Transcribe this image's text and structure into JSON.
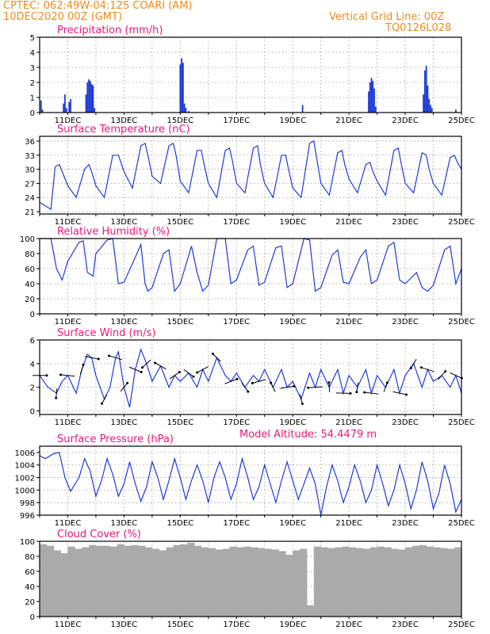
{
  "header": {
    "station": "CPTEC:   062:49W-04:12S   COARI (AM)",
    "date": "10DEC2020 00Z (GMT)",
    "grid_note": "Vertical Grid Line: 00Z",
    "run_id": "TQ0126L028"
  },
  "colors": {
    "header": "#f08a1c",
    "title": "#e8177c",
    "line": "#1f3bd6",
    "bar": "#1f3bd6",
    "cloud": "#aaaaaa",
    "axis": "#000000",
    "grid": "#999999"
  },
  "x_ticks": [
    "11DEC",
    "13DEC",
    "15DEC",
    "17DEC",
    "19DEC",
    "21DEC",
    "23DEC",
    "25DEC"
  ],
  "chart_data": [
    {
      "type": "bar",
      "title": "Precipitation (mm/h)",
      "x_start": "10DEC2020 00Z",
      "x_end": "25DEC2020 00Z",
      "x_unit": "days",
      "ylim": [
        0,
        5
      ],
      "yticks": [
        0,
        1,
        2,
        3,
        4,
        5
      ],
      "grid": true,
      "x": [
        0.05,
        0.1,
        0.85,
        0.9,
        0.95,
        1.05,
        1.1,
        1.65,
        1.7,
        1.75,
        1.8,
        1.85,
        1.9,
        1.95,
        5.0,
        5.05,
        5.1,
        5.15,
        5.2,
        5.3,
        9.35,
        11.7,
        11.75,
        11.8,
        11.85,
        11.9,
        11.95,
        13.65,
        13.7,
        13.75,
        13.8,
        13.85,
        13.9,
        13.95,
        14.8
      ],
      "values": [
        0.8,
        0.2,
        0.6,
        1.2,
        0.3,
        0.7,
        0.9,
        1.2,
        2.0,
        2.2,
        2.1,
        1.9,
        1.8,
        0.3,
        3.2,
        3.6,
        3.3,
        0.6,
        0.3,
        0.1,
        0.5,
        1.4,
        2.0,
        2.3,
        2.1,
        1.6,
        0.4,
        1.2,
        2.8,
        3.1,
        1.8,
        0.9,
        0.5,
        0.3,
        0.2
      ]
    },
    {
      "type": "line",
      "title": "Surface Temperature (nC)",
      "x_start": "10DEC2020 00Z",
      "x_end": "25DEC2020 00Z",
      "x_unit": "days",
      "ylim": [
        20.5,
        37
      ],
      "yticks": [
        21,
        24,
        27,
        30,
        33,
        36
      ],
      "grid": true,
      "x": [
        0,
        0.4,
        0.55,
        0.7,
        0.8,
        1.0,
        1.3,
        1.6,
        1.75,
        1.85,
        2.0,
        2.3,
        2.6,
        2.8,
        3.0,
        3.3,
        3.6,
        3.75,
        3.85,
        4.0,
        4.3,
        4.6,
        4.75,
        4.85,
        5.0,
        5.3,
        5.6,
        5.75,
        5.85,
        6.0,
        6.3,
        6.6,
        6.75,
        6.85,
        7.0,
        7.3,
        7.6,
        7.75,
        7.85,
        8.0,
        8.3,
        8.6,
        8.75,
        8.85,
        9.0,
        9.3,
        9.6,
        9.75,
        9.85,
        10.0,
        10.3,
        10.6,
        10.75,
        10.85,
        11.0,
        11.3,
        11.6,
        11.75,
        11.85,
        12.0,
        12.3,
        12.6,
        12.75,
        12.85,
        13.0,
        13.3,
        13.6,
        13.75,
        13.85,
        14.0,
        14.3,
        14.6,
        14.75,
        14.85,
        15.0
      ],
      "values": [
        23.0,
        21.5,
        30.5,
        31.0,
        29.5,
        26.5,
        24.0,
        30.0,
        31.0,
        29.5,
        26.5,
        24.0,
        33.0,
        33.0,
        29.5,
        26.0,
        35.0,
        35.5,
        33.0,
        28.5,
        27.0,
        35.0,
        35.5,
        33.0,
        27.5,
        25.0,
        34.0,
        34.0,
        31.0,
        27.0,
        24.0,
        34.0,
        34.5,
        32.0,
        27.0,
        25.0,
        34.5,
        35.0,
        31.0,
        27.0,
        24.0,
        33.0,
        33.0,
        30.0,
        26.0,
        24.0,
        35.5,
        36.0,
        32.5,
        27.0,
        24.5,
        33.5,
        34.0,
        31.0,
        28.0,
        25.0,
        31.0,
        31.5,
        29.5,
        27.5,
        24.5,
        34.0,
        34.5,
        31.5,
        27.0,
        25.0,
        33.5,
        33.0,
        30.0,
        27.0,
        24.5,
        32.5,
        33.0,
        31.5,
        30.0
      ]
    },
    {
      "type": "line",
      "title": "Relative Humidity (%)",
      "x_start": "10DEC2020 00Z",
      "x_end": "25DEC2020 00Z",
      "x_unit": "days",
      "ylim": [
        0,
        100
      ],
      "yticks": [
        0,
        20,
        40,
        60,
        80,
        100
      ],
      "grid": true,
      "x": [
        0,
        0.4,
        0.6,
        0.8,
        1.0,
        1.4,
        1.55,
        1.7,
        1.9,
        2.0,
        2.4,
        2.6,
        2.8,
        3.0,
        3.4,
        3.6,
        3.75,
        3.85,
        4.0,
        4.4,
        4.6,
        4.8,
        5.0,
        5.4,
        5.6,
        5.8,
        6.0,
        6.3,
        6.6,
        6.8,
        7.0,
        7.4,
        7.6,
        7.8,
        8.0,
        8.4,
        8.6,
        8.8,
        9.0,
        9.4,
        9.6,
        9.8,
        10.0,
        10.4,
        10.6,
        10.8,
        11.0,
        11.4,
        11.6,
        11.8,
        12.0,
        12.4,
        12.6,
        12.8,
        13.0,
        13.4,
        13.6,
        13.8,
        14.0,
        14.4,
        14.6,
        14.8,
        15.0
      ],
      "values": [
        100,
        100,
        60,
        45,
        70,
        95,
        97,
        55,
        50,
        80,
        98,
        100,
        40,
        42,
        75,
        92,
        40,
        30,
        35,
        80,
        85,
        30,
        40,
        90,
        55,
        30,
        38,
        100,
        100,
        40,
        45,
        85,
        90,
        38,
        42,
        88,
        90,
        35,
        40,
        100,
        98,
        30,
        35,
        78,
        85,
        42,
        40,
        75,
        85,
        40,
        45,
        90,
        95,
        45,
        40,
        55,
        35,
        30,
        38,
        85,
        90,
        40,
        60
      ]
    },
    {
      "type": "line",
      "title": "Surface Wind (m/s)",
      "x_start": "10DEC2020 00Z",
      "x_end": "25DEC2020 00Z",
      "x_unit": "days",
      "ylim": [
        -0.3,
        6
      ],
      "yticks": [
        0,
        2,
        4,
        6
      ],
      "grid": true,
      "x": [
        0,
        0.3,
        0.6,
        0.8,
        1.0,
        1.3,
        1.5,
        1.7,
        1.85,
        2.0,
        2.3,
        2.5,
        2.7,
        2.8,
        3.0,
        3.2,
        3.4,
        3.6,
        3.8,
        4.0,
        4.3,
        4.6,
        4.8,
        5.0,
        5.3,
        5.6,
        5.8,
        6.0,
        6.3,
        6.6,
        6.8,
        7.0,
        7.3,
        7.6,
        7.8,
        8.0,
        8.3,
        8.6,
        8.8,
        9.0,
        9.3,
        9.6,
        9.8,
        10.0,
        10.3,
        10.6,
        10.8,
        11.0,
        11.3,
        11.6,
        11.8,
        12.0,
        12.3,
        12.6,
        12.8,
        13.0,
        13.3,
        13.6,
        13.8,
        14.0,
        14.3,
        14.6,
        14.8,
        15.0
      ],
      "values": [
        3.0,
        2.0,
        1.5,
        2.5,
        3.0,
        1.5,
        3.5,
        4.8,
        4.5,
        3.0,
        1.0,
        2.0,
        4.5,
        5.0,
        2.0,
        0.3,
        3.5,
        5.2,
        4.0,
        2.5,
        3.8,
        2.0,
        3.0,
        2.5,
        3.2,
        2.0,
        3.5,
        2.5,
        4.5,
        3.0,
        2.5,
        3.2,
        2.0,
        3.0,
        2.5,
        3.5,
        2.0,
        3.5,
        2.0,
        2.5,
        1.0,
        3.2,
        2.0,
        3.5,
        2.0,
        3.5,
        1.5,
        3.0,
        2.0,
        3.5,
        1.5,
        3.0,
        2.0,
        3.5,
        1.5,
        3.0,
        4.0,
        2.0,
        3.5,
        2.5,
        3.0,
        2.0,
        3.0,
        1.5
      ]
    },
    {
      "type": "line",
      "title": "Surface Pressure (hPa)",
      "annotation": "Model Altitude: 54.4479 m",
      "x_start": "10DEC2020 00Z",
      "x_end": "25DEC2020 00Z",
      "x_unit": "days",
      "ylim": [
        996,
        1007
      ],
      "yticks": [
        996,
        998,
        1000,
        1002,
        1004,
        1006
      ],
      "grid": true,
      "x": [
        0,
        0.2,
        0.5,
        0.7,
        0.9,
        1.1,
        1.4,
        1.6,
        1.8,
        2.0,
        2.2,
        2.4,
        2.6,
        2.8,
        3.0,
        3.2,
        3.4,
        3.6,
        3.8,
        4.0,
        4.2,
        4.4,
        4.6,
        4.8,
        5.0,
        5.2,
        5.4,
        5.6,
        5.8,
        6.0,
        6.2,
        6.4,
        6.6,
        6.8,
        7.0,
        7.2,
        7.4,
        7.6,
        7.8,
        8.0,
        8.2,
        8.4,
        8.6,
        8.8,
        9.0,
        9.2,
        9.4,
        9.6,
        9.8,
        10.0,
        10.2,
        10.4,
        10.6,
        10.8,
        11.0,
        11.2,
        11.4,
        11.6,
        11.8,
        12.0,
        12.2,
        12.4,
        12.6,
        12.8,
        13.0,
        13.2,
        13.4,
        13.6,
        13.8,
        14.0,
        14.2,
        14.4,
        14.6,
        14.8,
        15.0
      ],
      "values": [
        1005.5,
        1005.0,
        1005.8,
        1006.0,
        1002.0,
        999.8,
        1002.0,
        1005.0,
        1003.0,
        999.0,
        1001.5,
        1005.0,
        1002.5,
        999.0,
        1001.0,
        1004.5,
        1001.0,
        998.2,
        1000.5,
        1004.5,
        1002.0,
        998.5,
        1001.5,
        1005.0,
        1002.0,
        998.5,
        1001.5,
        1004.0,
        1001.5,
        998.0,
        1002.0,
        1004.5,
        1002.0,
        998.5,
        1001.0,
        1005.0,
        1002.0,
        998.5,
        1000.5,
        1004.0,
        1001.0,
        998.0,
        1001.5,
        1004.5,
        1001.5,
        998.5,
        1001.0,
        1003.5,
        1001.0,
        996.0,
        1000.5,
        1004.0,
        1001.5,
        998.0,
        1000.5,
        1004.0,
        1001.5,
        998.0,
        1000.0,
        1004.0,
        1001.0,
        997.5,
        1000.0,
        1004.0,
        1001.0,
        997.0,
        1000.0,
        1004.5,
        1001.5,
        997.0,
        999.5,
        1004.0,
        1001.0,
        996.5,
        998.5
      ]
    },
    {
      "type": "bar",
      "title": "Cloud Cover (%)",
      "x_start": "10DEC2020 00Z",
      "x_end": "25DEC2020 00Z",
      "x_unit": "days",
      "ylim": [
        0,
        100
      ],
      "yticks": [
        0,
        20,
        40,
        60,
        80,
        100
      ],
      "grid": true,
      "x": [
        0,
        0.25,
        0.5,
        0.75,
        1.0,
        1.25,
        1.5,
        1.75,
        2.0,
        2.25,
        2.5,
        2.75,
        3.0,
        3.25,
        3.5,
        3.75,
        4.0,
        4.25,
        4.5,
        4.75,
        5.0,
        5.25,
        5.5,
        5.75,
        6.0,
        6.25,
        6.5,
        6.75,
        7.0,
        7.25,
        7.5,
        7.75,
        8.0,
        8.25,
        8.5,
        8.75,
        9.0,
        9.25,
        9.5,
        9.75,
        10.0,
        10.25,
        10.5,
        10.75,
        11.0,
        11.25,
        11.5,
        11.75,
        12.0,
        12.25,
        12.5,
        12.75,
        13.0,
        13.25,
        13.5,
        13.75,
        14.0,
        14.25,
        14.5,
        14.75
      ],
      "values": [
        96,
        94,
        88,
        84,
        93,
        90,
        92,
        95,
        94,
        94,
        93,
        96,
        94,
        95,
        94,
        92,
        90,
        88,
        92,
        95,
        96,
        98,
        94,
        92,
        91,
        89,
        90,
        93,
        92,
        93,
        92,
        91,
        90,
        89,
        87,
        82,
        88,
        90,
        15,
        93,
        92,
        91,
        92,
        93,
        92,
        91,
        90,
        92,
        93,
        92,
        90,
        89,
        92,
        94,
        95,
        93,
        92,
        91,
        90,
        92
      ]
    }
  ]
}
